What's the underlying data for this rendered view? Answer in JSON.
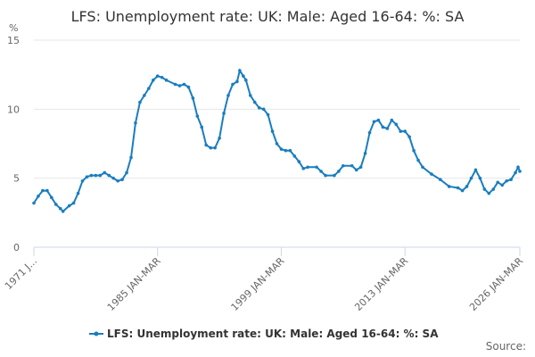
{
  "chart_data": {
    "type": "line",
    "title": "LFS: Unemployment rate: UK: Male: Aged 16-64: %: SA",
    "y_label": "%",
    "source": "Source:",
    "x": [
      1971.0,
      1971.5,
      1972.0,
      1972.5,
      1973.0,
      1973.5,
      1974.0,
      1974.3,
      1975.0,
      1975.5,
      1976.0,
      1976.5,
      1977.0,
      1977.5,
      1978.0,
      1978.5,
      1979.0,
      1979.5,
      1980.0,
      1980.5,
      1981.0,
      1981.5,
      1982.0,
      1982.5,
      1983.0,
      1983.5,
      1984.0,
      1984.5,
      1985.0,
      1985.5,
      1986.0,
      1987.0,
      1987.5,
      1988.0,
      1988.5,
      1989.0,
      1989.5,
      1990.0,
      1990.5,
      1991.0,
      1991.5,
      1992.0,
      1992.5,
      1993.0,
      1993.5,
      1994.0,
      1994.3,
      1994.7,
      1995.0,
      1995.5,
      1996.0,
      1996.5,
      1997.0,
      1997.5,
      1998.0,
      1998.5,
      1999.0,
      1999.5,
      2000.0,
      2000.5,
      2001.0,
      2001.5,
      2002.0,
      2003.0,
      2003.5,
      2004.0,
      2005.0,
      2005.5,
      2006.0,
      2007.0,
      2007.5,
      2008.0,
      2008.5,
      2009.0,
      2009.5,
      2010.0,
      2010.5,
      2011.0,
      2011.5,
      2012.0,
      2012.5,
      2013.0,
      2013.5,
      2014.0,
      2014.5,
      2015.0,
      2016.0,
      2017.0,
      2018.0,
      2019.0,
      2019.5,
      2020.0,
      2020.5,
      2021.0,
      2021.5,
      2022.0,
      2022.5,
      2023.0,
      2023.5,
      2024.0,
      2024.5,
      2025.0,
      2025.5,
      2025.8,
      2026.0
    ],
    "series": [
      {
        "name": "LFS: Unemployment rate: UK: Male: Aged 16-64: %: SA",
        "color": "#1a7dbf",
        "values": [
          3.2,
          3.7,
          4.1,
          4.1,
          3.6,
          3.1,
          2.8,
          2.6,
          3.0,
          3.2,
          3.9,
          4.8,
          5.1,
          5.2,
          5.2,
          5.2,
          5.4,
          5.2,
          5.0,
          4.8,
          4.9,
          5.4,
          6.5,
          9.0,
          10.5,
          11.0,
          11.5,
          12.1,
          12.4,
          12.3,
          12.1,
          11.8,
          11.7,
          11.8,
          11.6,
          10.8,
          9.5,
          8.7,
          7.4,
          7.2,
          7.2,
          7.9,
          9.7,
          11.0,
          11.8,
          12.0,
          12.8,
          12.4,
          12.1,
          11.0,
          10.5,
          10.1,
          10.0,
          9.6,
          8.4,
          7.5,
          7.1,
          7.0,
          7.0,
          6.6,
          6.2,
          5.7,
          5.8,
          5.8,
          5.5,
          5.2,
          5.2,
          5.5,
          5.9,
          5.9,
          5.6,
          5.8,
          6.8,
          8.3,
          9.1,
          9.2,
          8.7,
          8.6,
          9.2,
          8.9,
          8.4,
          8.4,
          8.0,
          7.0,
          6.3,
          5.8,
          5.3,
          4.9,
          4.4,
          4.3,
          4.1,
          4.4,
          5.0,
          5.6,
          5.0,
          4.2,
          3.9,
          4.2,
          4.7,
          4.5,
          4.8,
          4.9,
          5.4,
          5.8,
          5.5
        ]
      }
    ],
    "xlim": [
      1971,
      2026
    ],
    "xticks": [
      {
        "value": 1971,
        "label": "1971 J..."
      },
      {
        "value": 1985,
        "label": "1985 JAN-MAR"
      },
      {
        "value": 1999,
        "label": "1999 JAN-MAR"
      },
      {
        "value": 2013,
        "label": "2013 JAN-MAR"
      },
      {
        "value": 2026,
        "label": "2026 JAN-MAR"
      }
    ],
    "ylim": [
      0,
      15
    ],
    "yticks": [
      0,
      5,
      10,
      15
    ],
    "grid": true
  }
}
